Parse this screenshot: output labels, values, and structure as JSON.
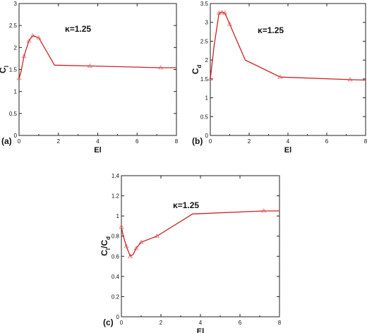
{
  "chart_data": [
    {
      "type": "line",
      "panel_label": "(a)",
      "xlabel": "El",
      "ylabel": "C",
      "ylabel_sub": "l",
      "annotation": "κ=1.25",
      "xlim": [
        0,
        8
      ],
      "ylim": [
        0,
        3
      ],
      "xticks": [
        "0",
        "2",
        "4",
        "6",
        "8"
      ],
      "yticks": [
        "0",
        "0.5",
        "1",
        "1.5",
        "2",
        "2.5",
        "3"
      ],
      "line_color": "#cc2222",
      "x": [
        0.0,
        0.1,
        0.25,
        0.5,
        0.7,
        1.0,
        1.8,
        3.6,
        7.2,
        8.0
      ],
      "y": [
        1.3,
        1.45,
        1.8,
        2.15,
        2.27,
        2.22,
        1.6,
        1.58,
        1.54,
        1.54
      ],
      "marker_x": [
        0.0,
        0.25,
        0.5,
        0.7,
        1.0,
        3.6,
        7.2
      ],
      "marker_y": [
        1.3,
        1.8,
        2.15,
        2.27,
        2.22,
        1.58,
        1.54
      ]
    },
    {
      "type": "line",
      "panel_label": "(b)",
      "xlabel": "El",
      "ylabel": "C",
      "ylabel_sub": "d",
      "annotation": "κ=1.25",
      "xlim": [
        0,
        8
      ],
      "ylim": [
        0,
        3.5
      ],
      "xticks": [
        "0",
        "2",
        "4",
        "6",
        "8"
      ],
      "yticks": [
        "0",
        "0.5",
        "1",
        "1.5",
        "2",
        "2.5",
        "3",
        "3.5"
      ],
      "line_color": "#cc2222",
      "x": [
        0.0,
        0.2,
        0.45,
        0.6,
        0.75,
        1.0,
        1.8,
        3.6,
        7.2,
        8.0
      ],
      "y": [
        1.5,
        2.4,
        3.25,
        3.27,
        3.25,
        2.95,
        2.0,
        1.55,
        1.48,
        1.47
      ],
      "marker_x": [
        0.0,
        0.45,
        0.6,
        0.75,
        1.0,
        3.6,
        7.2
      ],
      "marker_y": [
        1.5,
        3.25,
        3.27,
        3.25,
        2.95,
        1.55,
        1.48
      ]
    },
    {
      "type": "line",
      "panel_label": "(c)",
      "xlabel": "El",
      "ylabel": "C",
      "ylabel_sub": "l",
      "ylabel_mid": "/C",
      "ylabel_sub2": "d",
      "annotation": "κ=1.25",
      "xlim": [
        0,
        8
      ],
      "ylim": [
        0,
        1.4
      ],
      "xticks": [
        "0",
        "2",
        "4",
        "6",
        "8"
      ],
      "yticks": [
        "0",
        "0.2",
        "0.4",
        "0.6",
        "0.8",
        "1",
        "1.2",
        "1.4"
      ],
      "line_color": "#cc2222",
      "x": [
        0.0,
        0.1,
        0.25,
        0.45,
        0.6,
        0.75,
        1.0,
        1.8,
        3.6,
        7.2,
        8.0
      ],
      "y": [
        0.89,
        0.8,
        0.7,
        0.6,
        0.62,
        0.68,
        0.74,
        0.8,
        1.02,
        1.05,
        1.05
      ],
      "marker_x": [
        0.0,
        0.25,
        0.45,
        0.75,
        1.0,
        1.8,
        7.2
      ],
      "marker_y": [
        0.89,
        0.7,
        0.6,
        0.68,
        0.74,
        0.8,
        1.05
      ]
    }
  ]
}
